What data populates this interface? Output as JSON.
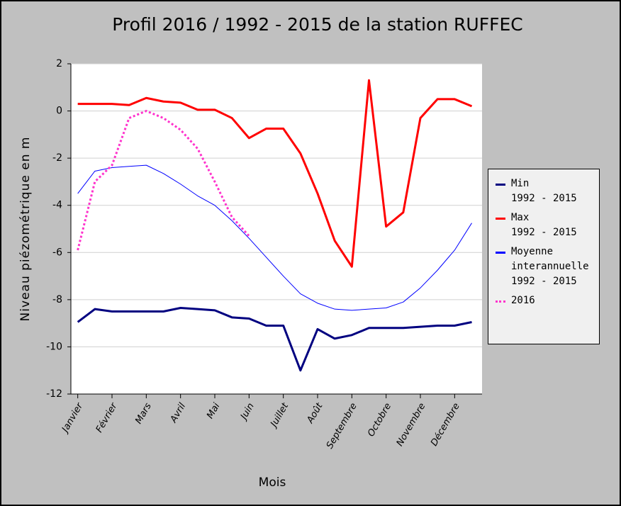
{
  "chart_data": {
    "type": "line",
    "title": "Profil 2016 / 1992 - 2015 de la station RUFFEC",
    "xlabel": "Mois",
    "ylabel": "Niveau piézométrique en m",
    "x": [
      0,
      0.5,
      1,
      1.5,
      2,
      2.5,
      3,
      3.5,
      4,
      4.5,
      5,
      5.5,
      6,
      6.5,
      7,
      7.5,
      8,
      8.5,
      9,
      9.5,
      10,
      10.5,
      11,
      11.5
    ],
    "xlim": [
      -0.2,
      11.8
    ],
    "xticks": [
      {
        "value": 0,
        "label": "Janvier"
      },
      {
        "value": 1,
        "label": "Février"
      },
      {
        "value": 2,
        "label": "Mars"
      },
      {
        "value": 3,
        "label": "Avril"
      },
      {
        "value": 4,
        "label": "Mai"
      },
      {
        "value": 5,
        "label": "Juin"
      },
      {
        "value": 6,
        "label": "Juillet"
      },
      {
        "value": 7,
        "label": "Août"
      },
      {
        "value": 8,
        "label": "Septembre"
      },
      {
        "value": 9,
        "label": "Octobre"
      },
      {
        "value": 10,
        "label": "Novembre"
      },
      {
        "value": 11,
        "label": "Décembre"
      }
    ],
    "ylim": [
      -12,
      2
    ],
    "yticks": [
      -12,
      -10,
      -8,
      -6,
      -4,
      -2,
      0,
      2
    ],
    "grid": true,
    "legend": "right",
    "series": [
      {
        "name": "Min\n1992 - 2015",
        "color": "#000080",
        "line_width": 3,
        "style": "solid",
        "values": [
          -8.95,
          -8.4,
          -8.5,
          -8.5,
          -8.5,
          -8.5,
          -8.35,
          -8.4,
          -8.45,
          -8.75,
          -8.8,
          -9.1,
          -9.1,
          -11,
          -9.25,
          -9.65,
          -9.5,
          -9.2,
          -9.2,
          -9.2,
          -9.15,
          -9.1,
          -9.1,
          -8.95
        ]
      },
      {
        "name": "Max\n1992 - 2015",
        "color": "#ff0000",
        "line_width": 3,
        "style": "solid",
        "values": [
          0.3,
          0.3,
          0.3,
          0.25,
          0.55,
          0.4,
          0.35,
          0.05,
          0.05,
          -0.3,
          -1.15,
          -0.75,
          -0.75,
          -1.8,
          -3.5,
          -5.5,
          -6.6,
          1.3,
          -4.9,
          -4.3,
          -0.3,
          0.5,
          0.5,
          0.2
        ]
      },
      {
        "name": "Moyenne\ninterannuelle\n1992 - 2015",
        "color": "#0000ff",
        "line_width": 1,
        "style": "solid",
        "values": [
          -3.5,
          -2.55,
          -2.4,
          -2.35,
          -2.3,
          -2.65,
          -3.1,
          -3.6,
          -4.0,
          -4.65,
          -5.4,
          -6.2,
          -7.0,
          -7.75,
          -8.15,
          -8.4,
          -8.45,
          -8.4,
          -8.35,
          -8.1,
          -7.5,
          -6.75,
          -5.9,
          -4.75
        ]
      },
      {
        "name": "2016",
        "color": "#ff33cc",
        "line_width": 3,
        "style": "dotted",
        "values": [
          -5.9,
          -3.0,
          -2.3,
          -0.3,
          0.0,
          -0.3,
          -0.8,
          -1.6,
          -3.0,
          -4.5,
          -5.3,
          null,
          null,
          null,
          null,
          null,
          null,
          null,
          null,
          null,
          null,
          null,
          null,
          null
        ]
      }
    ]
  }
}
